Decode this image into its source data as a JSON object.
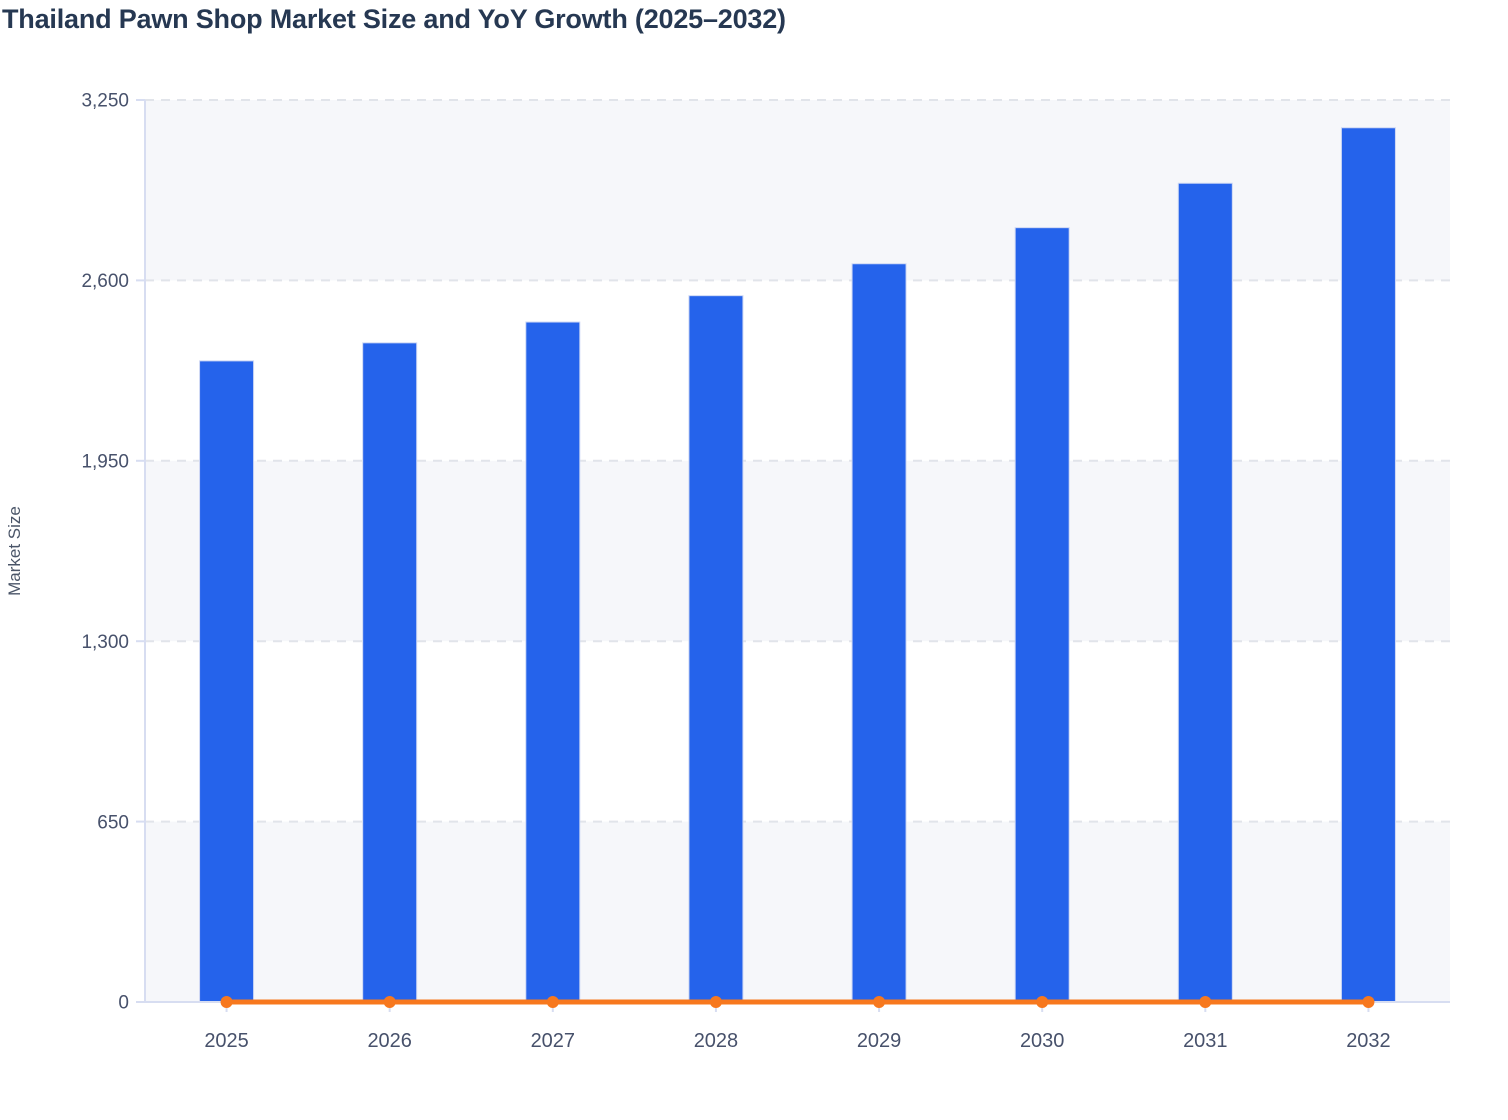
{
  "title": "Thailand Pawn Shop Market Size and YoY Growth (2025–2032)",
  "chart_data": {
    "type": "bar",
    "title": "Thailand Pawn Shop Market Size and YoY Growth (2025–2032)",
    "categories": [
      "2025",
      "2026",
      "2027",
      "2028",
      "2029",
      "2030",
      "2031",
      "2032"
    ],
    "series": [
      {
        "name": "Market Size",
        "type": "bar",
        "color": "#2563eb",
        "values": [
          2310,
          2375,
          2450,
          2545,
          2660,
          2790,
          2950,
          3150
        ]
      },
      {
        "name": "YoY Growth",
        "type": "line",
        "color": "#f7781e",
        "values": [
          0,
          0,
          0,
          0,
          0,
          0,
          0,
          0
        ],
        "note": "Line with round markers rendered flat at the 0 baseline of the left axis; no secondary-axis values are labeled in the image."
      }
    ],
    "xlabel": "",
    "ylabel": "Market Size",
    "ylim": [
      0,
      3250
    ],
    "yticks": [
      0,
      650,
      1300,
      1950,
      2600,
      3250
    ],
    "ytick_labels": [
      "0",
      "650",
      "1,300",
      "1,950",
      "2,600",
      "3,250"
    ],
    "grid": "horizontal dashed gridlines at each y tick",
    "legend": "none",
    "plot_bands": "alternating horizontal bands, light fill between 0–650, 1300–1950, 2600–3250"
  },
  "colors": {
    "bar_fill": "#2563eb",
    "bar_stroke": "#cdd7f4",
    "line_orange": "#f7781e",
    "title_text": "#263852",
    "tick_text": "#47516b",
    "axis_line": "#d7ddf1",
    "gridline": "#e1e4ea",
    "band_fill": "#f6f7fa",
    "background": "#ffffff"
  }
}
